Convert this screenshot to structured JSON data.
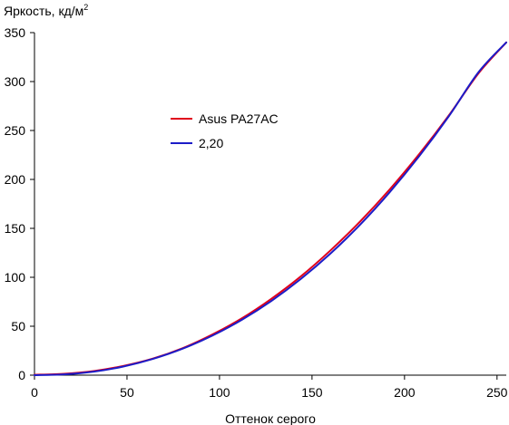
{
  "chart_data": {
    "type": "line",
    "title": "",
    "ylabel": "Яркость, кд/м",
    "ylabel_sup": "2",
    "xlabel": "Оттенок серого",
    "xlim": [
      0,
      255
    ],
    "ylim": [
      0,
      350
    ],
    "xticks": [
      "0",
      "50",
      "100",
      "150",
      "200",
      "250"
    ],
    "yticks": [
      "0",
      "50",
      "100",
      "150",
      "200",
      "250",
      "300",
      "350"
    ],
    "grid": false,
    "legend_position": "upper-center",
    "series": [
      {
        "name": "Asus PA27AC",
        "color": "#e0001b",
        "x": [
          0,
          16,
          32,
          48,
          64,
          80,
          96,
          112,
          128,
          144,
          160,
          176,
          192,
          208,
          224,
          240,
          255
        ],
        "y": [
          0.4,
          1.4,
          4.2,
          9.4,
          16.9,
          27.5,
          41.4,
          58.0,
          78.0,
          101.0,
          127.5,
          157.0,
          189.8,
          226.0,
          265.5,
          308.5,
          340.0
        ]
      },
      {
        "name": "2,20",
        "color": "#1c1cc8",
        "x": [
          0,
          16,
          32,
          48,
          64,
          80,
          96,
          112,
          128,
          144,
          160,
          176,
          192,
          208,
          224,
          240,
          255
        ],
        "y": [
          0.0,
          0.8,
          3.6,
          8.8,
          16.6,
          27.0,
          40.3,
          56.5,
          75.8,
          98.4,
          124.3,
          153.8,
          187.0,
          223.9,
          264.7,
          309.6,
          340.0
        ]
      }
    ]
  }
}
